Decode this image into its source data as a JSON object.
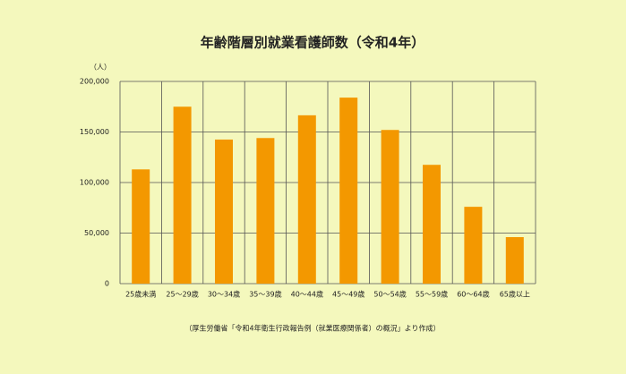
{
  "chart_data": {
    "type": "bar",
    "title": "年齢階層別就業看護師数（令和4年）",
    "y_unit": "（人）",
    "source": "（厚生労働省「令和4年衛生行政報告例（就業医療関係者）の概況」より作成）",
    "categories": [
      "25歳未満",
      "25～29歳",
      "30～34歳",
      "35～39歳",
      "40～44歳",
      "45～49歳",
      "50～54歳",
      "55～59歳",
      "60～64歳",
      "65歳以上"
    ],
    "values": [
      113000,
      175000,
      142500,
      144000,
      166500,
      184000,
      152000,
      117500,
      76000,
      46000
    ],
    "color": "#f39800",
    "ylim": [
      0,
      200000
    ],
    "yticks": [
      0,
      {
        "value": 50000,
        "label": "50,000"
      },
      {
        "value": 100000,
        "label": "100,000"
      },
      {
        "value": 150000,
        "label": "150,000"
      },
      {
        "value": 200000,
        "label": "200,000"
      }
    ],
    "grid": true
  }
}
